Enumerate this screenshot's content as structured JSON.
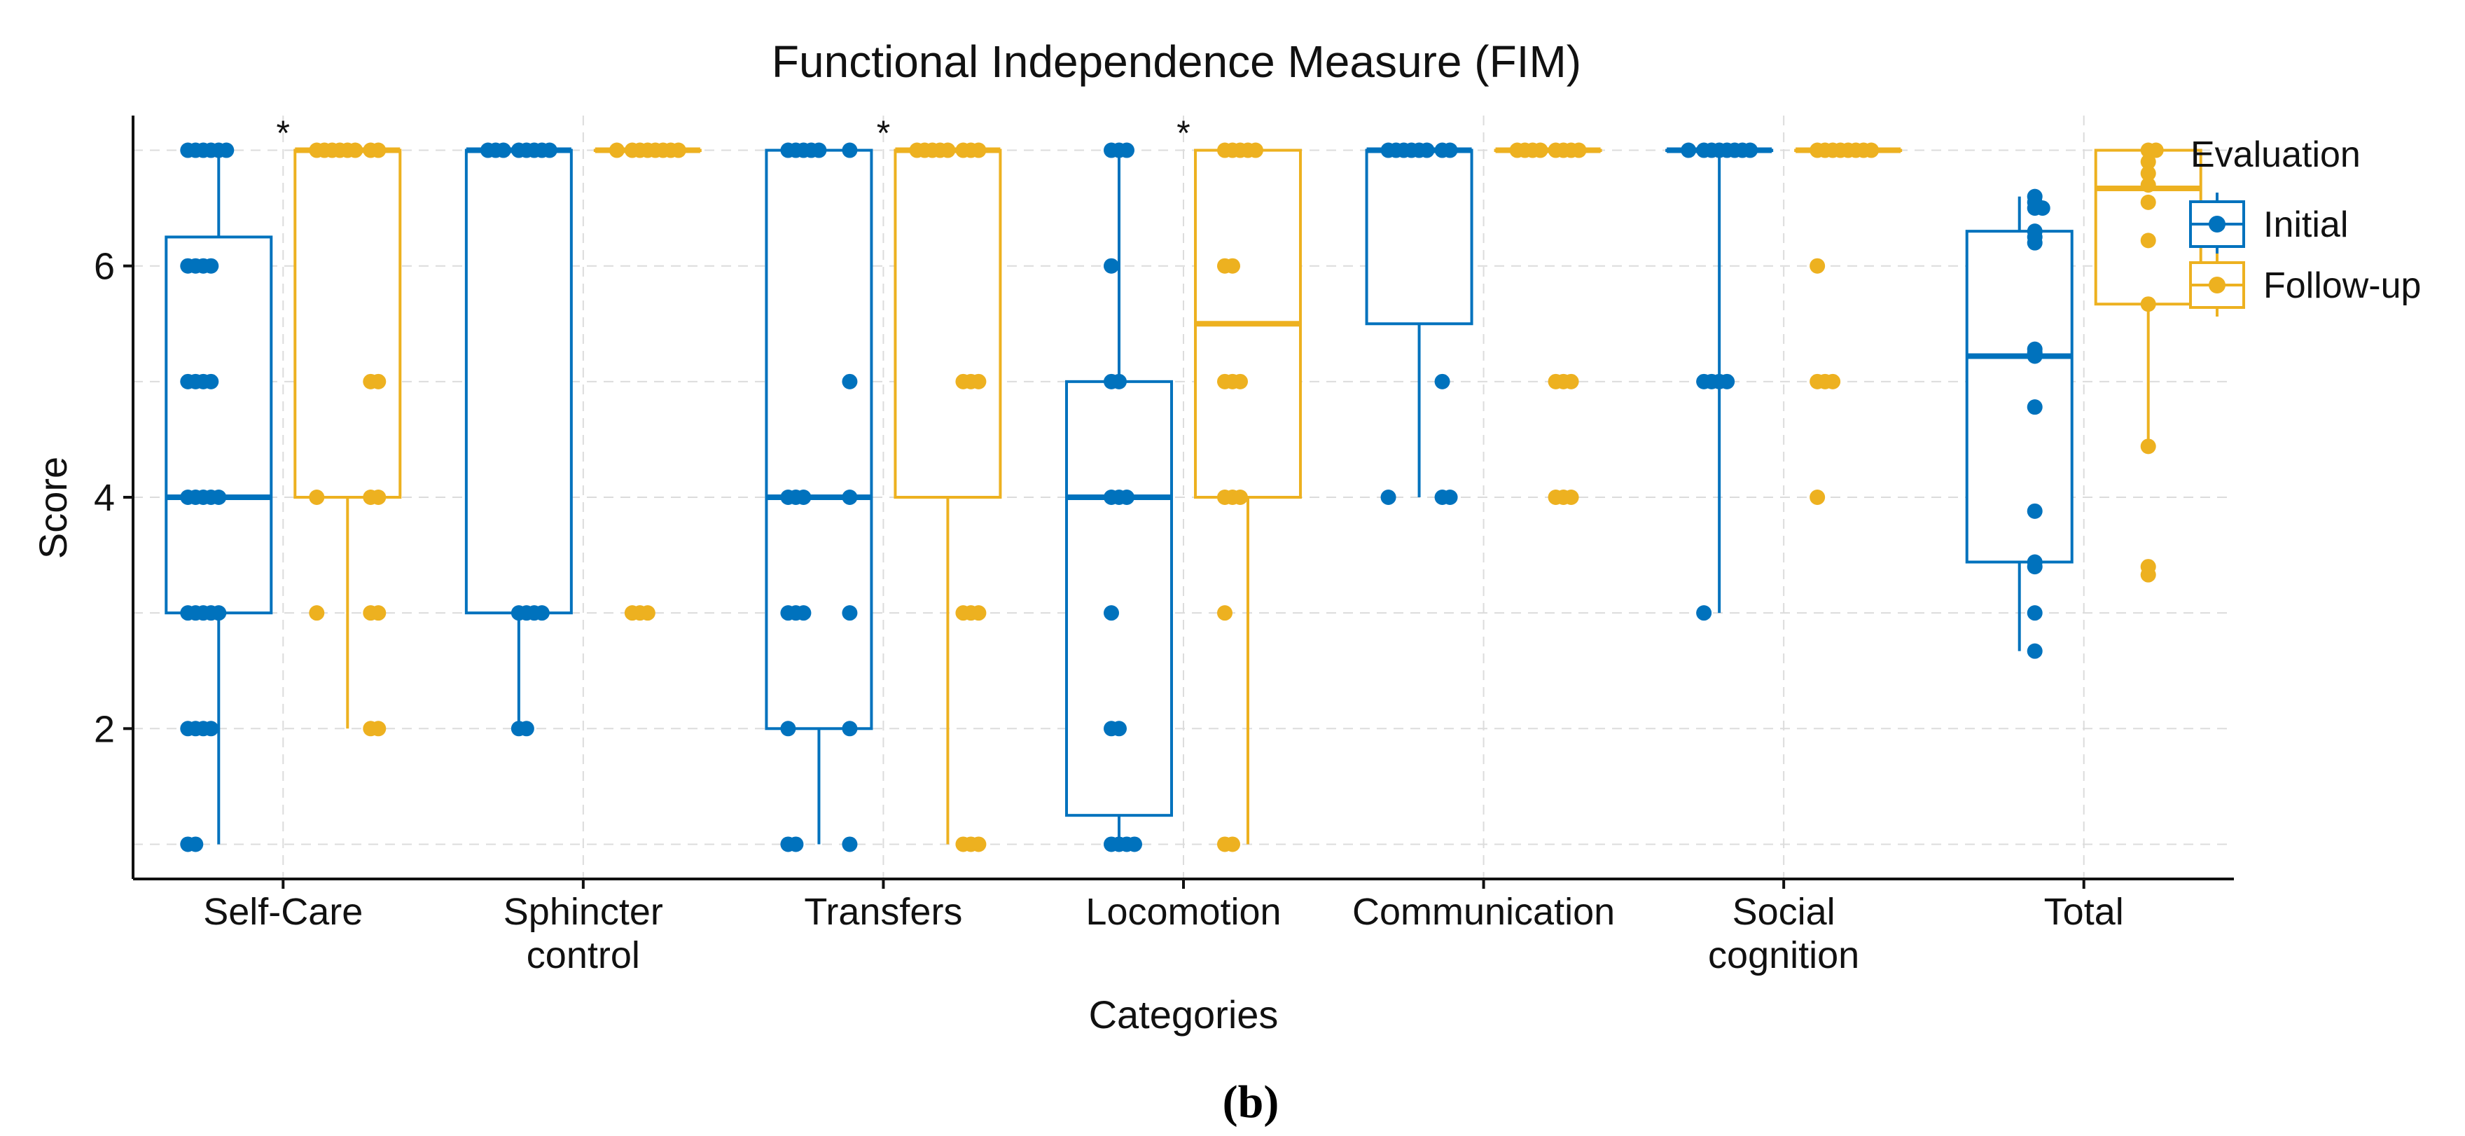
{
  "chart_data": {
    "type": "box",
    "title": "Functional Independence Measure (FIM)",
    "xlabel": "Categories",
    "ylabel": "Score",
    "ylim": [
      0.7,
      7.3
    ],
    "yticks": [
      2,
      4,
      6
    ],
    "grid": true,
    "legend_position": "right",
    "legend_title": "Evaluation",
    "panel_label": "(b)",
    "categories": [
      {
        "label": [
          "Self-Care"
        ],
        "significant": true
      },
      {
        "label": [
          "Sphincter",
          "control"
        ],
        "significant": false
      },
      {
        "label": [
          "Transfers"
        ],
        "significant": true
      },
      {
        "label": [
          "Locomotion"
        ],
        "significant": true
      },
      {
        "label": [
          "Communication"
        ],
        "significant": false
      },
      {
        "label": [
          "Social",
          "cognition"
        ],
        "significant": false
      },
      {
        "label": [
          "Total"
        ],
        "significant": false
      }
    ],
    "significance_marker": "*",
    "series": [
      {
        "name": "Initial",
        "color": "#0072BD",
        "boxes": [
          {
            "whisker_low": 1,
            "q1": 3,
            "median": 4,
            "q3": 6.25,
            "whisker_high": 7,
            "points": [
              7,
              7,
              7,
              7,
              7,
              7,
              6,
              6,
              6,
              6,
              5,
              5,
              5,
              5,
              4,
              4,
              4,
              4,
              4,
              3,
              3,
              3,
              3,
              3,
              2,
              2,
              2,
              2,
              1,
              1
            ]
          },
          {
            "whisker_low": 2,
            "q1": 3,
            "median": 7,
            "q3": 7,
            "whisker_high": 7,
            "points": [
              7,
              7,
              7,
              7,
              7,
              7,
              7,
              7,
              3,
              3,
              3,
              3,
              2,
              2
            ]
          },
          {
            "whisker_low": 1,
            "q1": 2,
            "median": 4,
            "q3": 7,
            "whisker_high": 7,
            "points": [
              7,
              7,
              7,
              7,
              7,
              7,
              5,
              4,
              4,
              4,
              4,
              3,
              3,
              3,
              3,
              2,
              2,
              1,
              1,
              1
            ]
          },
          {
            "whisker_low": 1,
            "q1": 1.25,
            "median": 4,
            "q3": 5,
            "whisker_high": 7,
            "points": [
              7,
              7,
              7,
              6,
              5,
              5,
              4,
              4,
              4,
              3,
              2,
              2,
              1,
              1,
              1,
              1
            ]
          },
          {
            "whisker_low": 4,
            "q1": 5.5,
            "median": 7,
            "q3": 7,
            "whisker_high": 7,
            "points": [
              7,
              7,
              7,
              7,
              7,
              7,
              7,
              7,
              5,
              4,
              4,
              4
            ]
          },
          {
            "whisker_low": 3,
            "q1": 7,
            "median": 7,
            "q3": 7,
            "whisker_high": 7,
            "points": [
              7,
              7,
              7,
              7,
              7,
              7,
              7,
              7,
              5,
              5,
              5,
              5,
              3
            ]
          },
          {
            "whisker_low": 2.67,
            "q1": 3.44,
            "median": 5.22,
            "q3": 6.3,
            "whisker_high": 6.6,
            "points": [
              6.6,
              6.55,
              6.5,
              6.5,
              6.3,
              6.25,
              6.2,
              5.28,
              5.25,
              5.22,
              4.78,
              3.88,
              3.44,
              3.4,
              3.0,
              2.67
            ]
          }
        ]
      },
      {
        "name": "Follow-up",
        "color": "#EDB120",
        "boxes": [
          {
            "whisker_low": 2,
            "q1": 4,
            "median": 7,
            "q3": 7,
            "whisker_high": 7,
            "points": [
              7,
              7,
              7,
              7,
              7,
              7,
              7,
              7,
              5,
              5,
              4,
              4,
              4,
              3,
              3,
              3,
              2,
              2
            ]
          },
          {
            "whisker_low": 7,
            "q1": 7,
            "median": 7,
            "q3": 7,
            "whisker_high": 7,
            "points": [
              7,
              7,
              7,
              7,
              7,
              7,
              7,
              7,
              3,
              3,
              3
            ]
          },
          {
            "whisker_low": 1,
            "q1": 4,
            "median": 7,
            "q3": 7,
            "whisker_high": 7,
            "points": [
              7,
              7,
              7,
              7,
              7,
              7,
              7,
              7,
              5,
              5,
              5,
              3,
              3,
              3,
              1,
              1,
              1
            ]
          },
          {
            "whisker_low": 1,
            "q1": 4,
            "median": 5.5,
            "q3": 7,
            "whisker_high": 7,
            "points": [
              7,
              7,
              7,
              7,
              7,
              6,
              6,
              5,
              5,
              5,
              4,
              4,
              4,
              3,
              1,
              1
            ]
          },
          {
            "whisker_low": 7,
            "q1": 7,
            "median": 7,
            "q3": 7,
            "whisker_high": 7,
            "points": [
              7,
              7,
              7,
              7,
              7,
              7,
              7,
              7,
              5,
              5,
              5,
              4,
              4,
              4
            ]
          },
          {
            "whisker_low": 7,
            "q1": 7,
            "median": 7,
            "q3": 7,
            "whisker_high": 7,
            "points": [
              7,
              7,
              7,
              7,
              7,
              7,
              7,
              7,
              6,
              5,
              5,
              5,
              4
            ]
          },
          {
            "whisker_low": 4.44,
            "q1": 5.67,
            "median": 6.67,
            "q3": 7,
            "whisker_high": 7,
            "points": [
              7,
              7,
              6.9,
              6.8,
              6.7,
              6.55,
              6.22,
              5.67,
              4.44,
              3.4,
              3.33
            ]
          }
        ]
      }
    ]
  }
}
